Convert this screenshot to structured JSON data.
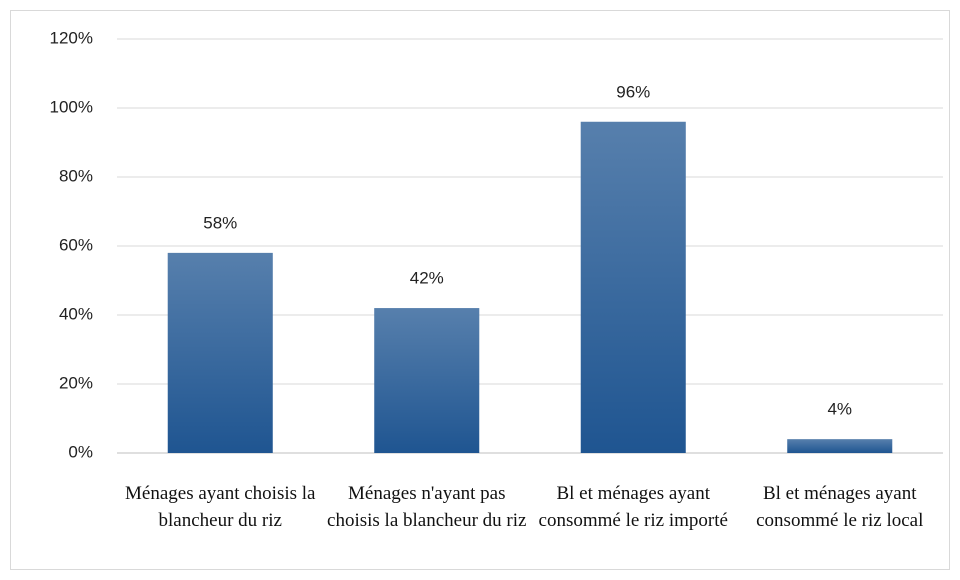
{
  "chart_data": {
    "type": "bar",
    "categories": [
      "Ménages ayant choisis la blancheur du riz",
      "Ménages n'ayant pas choisis la blancheur du riz",
      "Bl et ménages ayant consommé le riz importé",
      "Bl et ménages ayant consommé le riz local"
    ],
    "values": [
      58,
      42,
      96,
      4
    ],
    "value_labels": [
      "58%",
      "42%",
      "96%",
      "4%"
    ],
    "color": "#1f5591",
    "ylim": [
      0,
      120
    ],
    "yticks": [
      {
        "value": 0,
        "label": "0%"
      },
      {
        "value": 20,
        "label": "20%"
      },
      {
        "value": 40,
        "label": "40%"
      },
      {
        "value": 60,
        "label": "60%"
      },
      {
        "value": 80,
        "label": "80%"
      },
      {
        "value": 100,
        "label": "100%"
      },
      {
        "value": 120,
        "label": "120%"
      }
    ],
    "grid": true
  }
}
